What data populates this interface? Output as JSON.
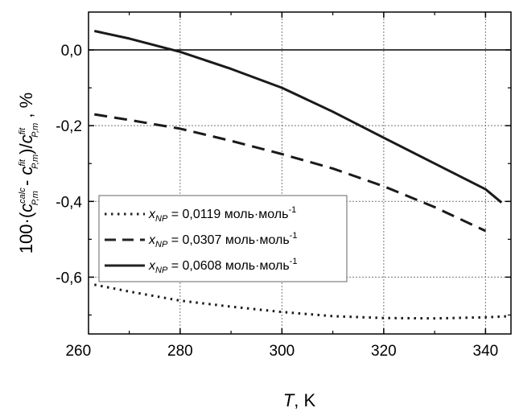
{
  "chart_data": {
    "type": "line",
    "xlabel": "T, K",
    "ylabel": "100·(c^calc_P,m - c^fit_P,m)/c^fit_P,m , %",
    "xlim": [
      262,
      345
    ],
    "ylim": [
      -0.75,
      0.1
    ],
    "xticks": [
      "260",
      "280",
      "300",
      "320",
      "340"
    ],
    "yticks": [
      "0,0",
      "-0,2",
      "-0,4",
      "-0,6"
    ],
    "x_tick_values": [
      260,
      280,
      300,
      320,
      340
    ],
    "y_tick_values": [
      0.0,
      -0.2,
      -0.4,
      -0.6
    ],
    "grid": true,
    "legend_position": "center-left",
    "series": [
      {
        "name": "x_NP = 0,0119 моль·моль-1",
        "style": "dotted",
        "x": [
          263.15,
          270,
          280,
          290,
          300,
          310,
          320,
          330,
          340,
          345
        ],
        "y": [
          -0.62,
          -0.638,
          -0.662,
          -0.678,
          -0.692,
          -0.703,
          -0.708,
          -0.709,
          -0.706,
          -0.703
        ]
      },
      {
        "name": "x_NP = 0,0307 моль·моль-1",
        "style": "dashed",
        "x": [
          263.15,
          270,
          280,
          290,
          300,
          310,
          320,
          330,
          340
        ],
        "y": [
          -0.17,
          -0.185,
          -0.208,
          -0.24,
          -0.275,
          -0.313,
          -0.36,
          -0.415,
          -0.478
        ]
      },
      {
        "name": "x_NP = 0,0608 моль·моль-1",
        "style": "solid",
        "x": [
          263.15,
          270,
          280,
          290,
          300,
          310,
          320,
          330,
          340,
          343.15
        ],
        "y": [
          0.05,
          0.03,
          -0.005,
          -0.05,
          -0.1,
          -0.163,
          -0.232,
          -0.3,
          -0.368,
          -0.403
        ]
      }
    ]
  },
  "axis": {
    "x_title_italic": "T",
    "x_title_rest": ", K",
    "y_prefix": "100·(",
    "y_c": "c",
    "y_calc": "calc",
    "y_sub": "P,m",
    "y_minus": " - ",
    "y_fit": "fit",
    "y_close": ")/",
    "y_suffix": " , %"
  },
  "legend": {
    "items": [
      {
        "var": "x",
        "sub": "NP",
        "text": " = 0,0119 моль·моль",
        "sup": "-1"
      },
      {
        "var": "x",
        "sub": "NP",
        "text": " = 0,0307 моль·моль",
        "sup": "-1"
      },
      {
        "var": "x",
        "sub": "NP",
        "text": " = 0,0608 моль·моль",
        "sup": "-1"
      }
    ]
  }
}
